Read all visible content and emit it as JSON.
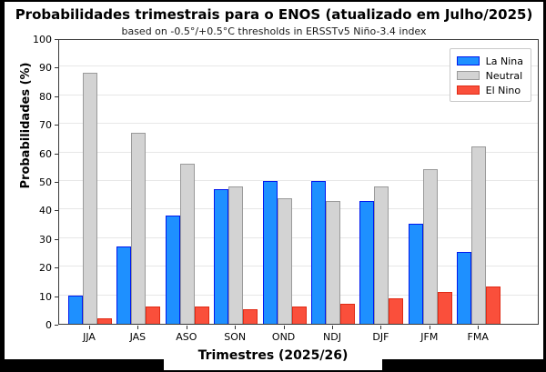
{
  "colors": {
    "canvas_background": "#000000",
    "figure_background": "#ffffff",
    "gridline": "#e7e7e7",
    "axis_spine": "#3a3a3a"
  },
  "chart_data": {
    "type": "bar",
    "title": "Probabilidades trimestrais para o ENOS (atualizado em Julho/2025)",
    "subtitle": "based on -0.5°/+0.5°C thresholds in ERSSTv5 Niño-3.4 index",
    "xlabel": "Trimestres (2025/26)",
    "ylabel": "Probabilidades (%)",
    "ylim": [
      0,
      100
    ],
    "ytick_step": 10,
    "grid": true,
    "legend_position": "top-right",
    "categories": [
      "JJA",
      "JAS",
      "ASO",
      "SON",
      "OND",
      "NDJ",
      "DJF",
      "JFM",
      "FMA"
    ],
    "series": [
      {
        "name": "La Nina",
        "fill": "#1E90FF",
        "edge": "#0018EE",
        "values": [
          10,
          27,
          38,
          47,
          50,
          50,
          43,
          35,
          25
        ]
      },
      {
        "name": "Neutral",
        "fill": "#D3D3D3",
        "edge": "#9A9A9A",
        "values": [
          88,
          67,
          56,
          48,
          44,
          43,
          48,
          54,
          62
        ]
      },
      {
        "name": "El Nino",
        "fill": "#FA4F3B",
        "edge": "#E02A15",
        "values": [
          2,
          6,
          6,
          5,
          6,
          7,
          9,
          11,
          13
        ]
      }
    ]
  }
}
